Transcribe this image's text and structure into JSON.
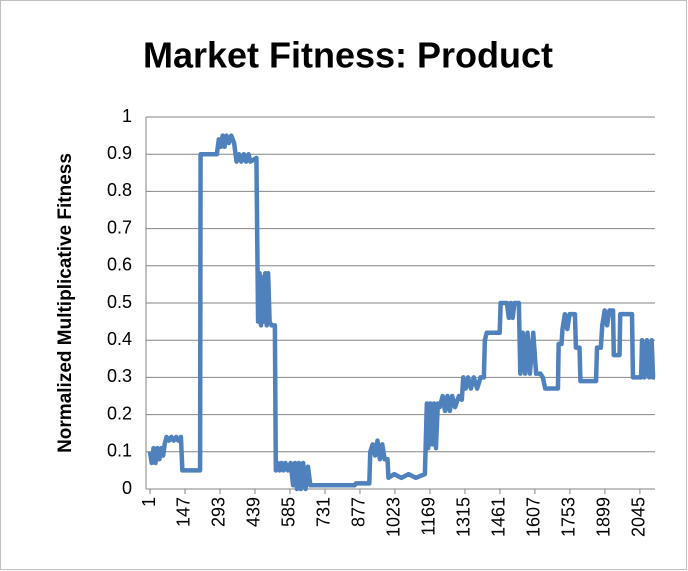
{
  "chart_data": {
    "type": "line",
    "title": "Market Fitness: Product",
    "y_label": "Normalized Multiplicative Fitness",
    "x": [
      1,
      8,
      16,
      24,
      32,
      40,
      48,
      56,
      62,
      70,
      80,
      90,
      100,
      110,
      120,
      130,
      136,
      210,
      212,
      280,
      288,
      296,
      304,
      312,
      320,
      330,
      340,
      352,
      362,
      372,
      382,
      392,
      402,
      412,
      420,
      445,
      452,
      458,
      464,
      470,
      476,
      482,
      488,
      494,
      500,
      508,
      522,
      526,
      534,
      542,
      550,
      558,
      566,
      576,
      588,
      598,
      606,
      614,
      622,
      630,
      640,
      650,
      660,
      670,
      855,
      860,
      916,
      920,
      930,
      940,
      950,
      960,
      970,
      980,
      992,
      996,
      1020,
      1050,
      1080,
      1110,
      1148,
      1156,
      1162,
      1170,
      1178,
      1186,
      1194,
      1202,
      1210,
      1222,
      1232,
      1242,
      1252,
      1262,
      1274,
      1290,
      1302,
      1308,
      1318,
      1328,
      1340,
      1352,
      1366,
      1380,
      1394,
      1398,
      1406,
      1460,
      1464,
      1490,
      1498,
      1506,
      1514,
      1522,
      1540,
      1546,
      1556,
      1566,
      1576,
      1586,
      1600,
      1612,
      1630,
      1640,
      1650,
      1703,
      1706,
      1718,
      1722,
      1732,
      1742,
      1752,
      1774,
      1778,
      1793,
      1797,
      1862,
      1866,
      1882,
      1888,
      1898,
      1908,
      1918,
      1933,
      1936,
      1960,
      1963,
      2012,
      2016,
      2050,
      2054,
      2064,
      2074,
      2084,
      2094,
      2100,
      2108
    ],
    "series": [
      {
        "name": "Product",
        "color": "#4f81bd",
        "values": [
          0.1,
          0.07,
          0.11,
          0.07,
          0.11,
          0.08,
          0.11,
          0.09,
          0.12,
          0.14,
          0.13,
          0.14,
          0.13,
          0.14,
          0.13,
          0.14,
          0.05,
          0.05,
          0.9,
          0.9,
          0.94,
          0.92,
          0.95,
          0.92,
          0.95,
          0.93,
          0.95,
          0.93,
          0.88,
          0.9,
          0.88,
          0.9,
          0.88,
          0.9,
          0.88,
          0.89,
          0.45,
          0.58,
          0.44,
          0.57,
          0.45,
          0.58,
          0.44,
          0.58,
          0.45,
          0.44,
          0.44,
          0.05,
          0.07,
          0.05,
          0.07,
          0.05,
          0.07,
          0.05,
          0.07,
          0.01,
          0.07,
          0.0,
          0.07,
          0.0,
          0.07,
          0.0,
          0.06,
          0.01,
          0.01,
          0.015,
          0.015,
          0.1,
          0.12,
          0.09,
          0.13,
          0.08,
          0.12,
          0.08,
          0.08,
          0.03,
          0.04,
          0.03,
          0.04,
          0.03,
          0.04,
          0.23,
          0.11,
          0.23,
          0.12,
          0.23,
          0.11,
          0.23,
          0.22,
          0.25,
          0.21,
          0.25,
          0.21,
          0.25,
          0.22,
          0.25,
          0.24,
          0.3,
          0.27,
          0.3,
          0.27,
          0.3,
          0.27,
          0.3,
          0.3,
          0.4,
          0.42,
          0.42,
          0.5,
          0.5,
          0.46,
          0.5,
          0.46,
          0.5,
          0.5,
          0.31,
          0.42,
          0.31,
          0.42,
          0.31,
          0.42,
          0.31,
          0.31,
          0.3,
          0.27,
          0.27,
          0.39,
          0.39,
          0.43,
          0.47,
          0.43,
          0.47,
          0.47,
          0.38,
          0.38,
          0.29,
          0.29,
          0.38,
          0.38,
          0.44,
          0.48,
          0.44,
          0.48,
          0.48,
          0.36,
          0.36,
          0.47,
          0.47,
          0.3,
          0.3,
          0.4,
          0.3,
          0.4,
          0.3,
          0.4,
          0.3,
          0.3
        ]
      }
    ],
    "xlim": [
      1,
      2108
    ],
    "xticks": [
      1,
      147,
      293,
      439,
      585,
      731,
      877,
      1023,
      1169,
      1315,
      1461,
      1607,
      1753,
      1899,
      2045
    ],
    "ylim": [
      0,
      1
    ],
    "yticks": [
      0,
      0.1,
      0.2,
      0.3,
      0.4,
      0.5,
      0.6,
      0.7,
      0.8,
      0.9,
      1
    ],
    "grid": true
  }
}
